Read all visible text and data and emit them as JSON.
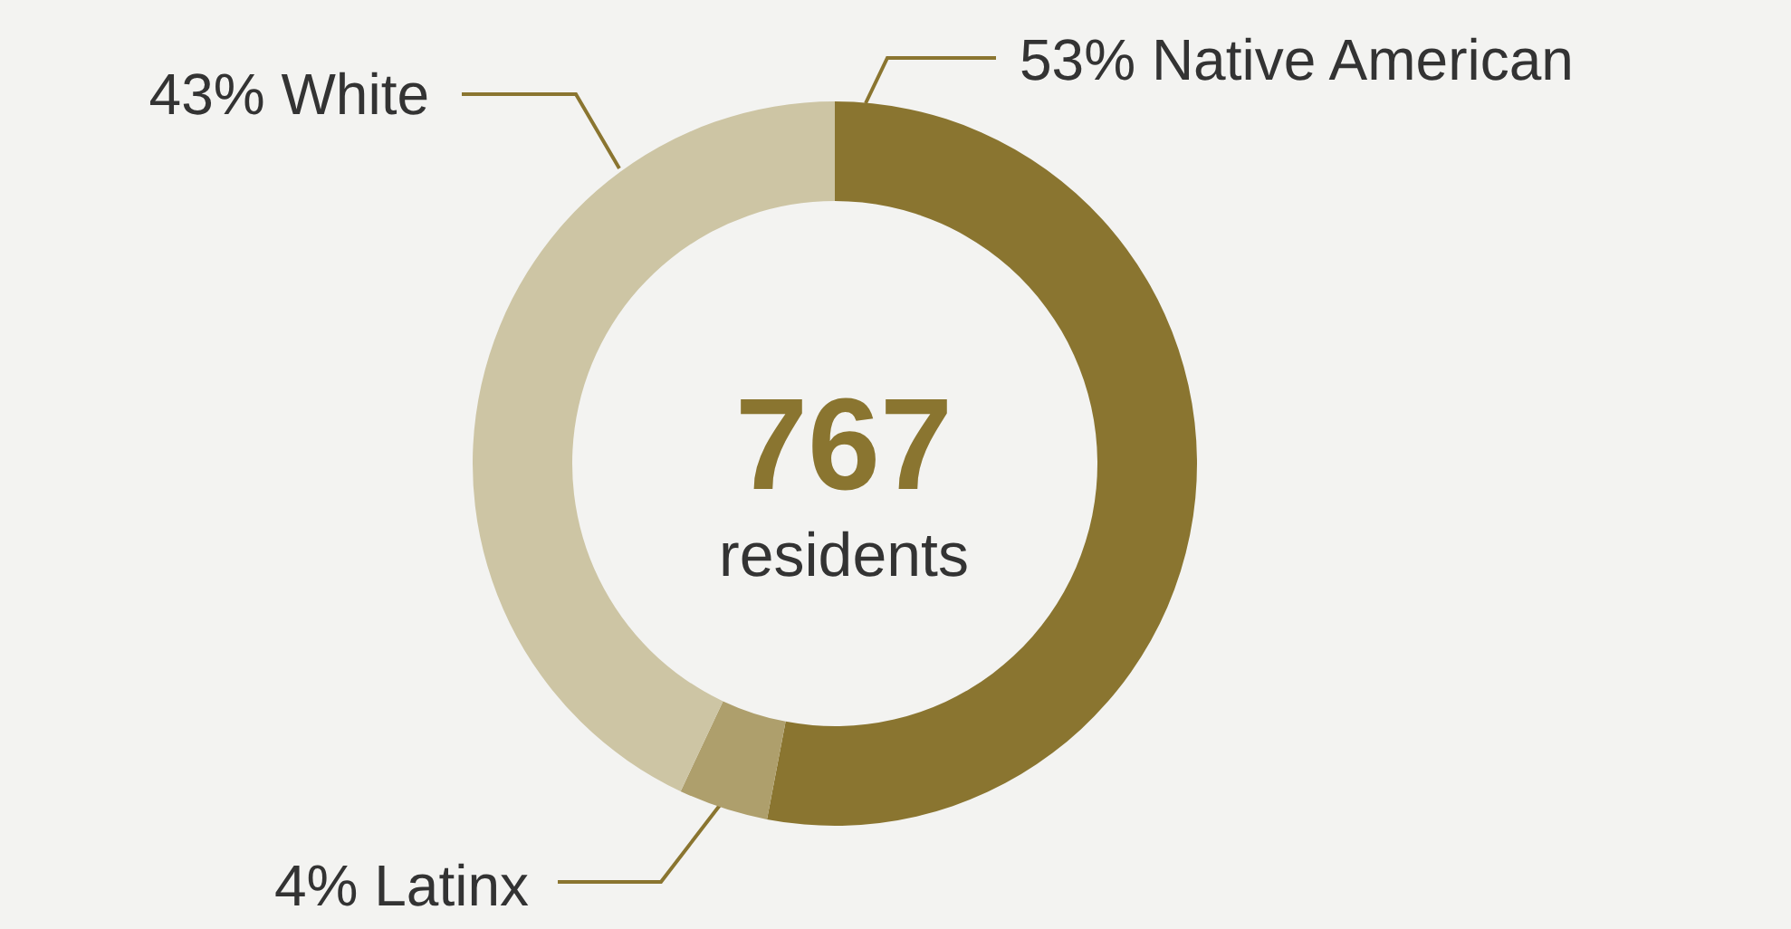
{
  "chart_data": {
    "type": "donut",
    "title": "767",
    "subtitle": "residents",
    "categories": [
      "Native American",
      "Latinx",
      "White"
    ],
    "values": [
      53,
      4,
      43
    ],
    "colors": [
      "#8a7530",
      "#ae9f6c",
      "#cdc5a4"
    ],
    "value_labels": [
      "53%",
      "4%",
      "43%"
    ],
    "legend": false
  }
}
